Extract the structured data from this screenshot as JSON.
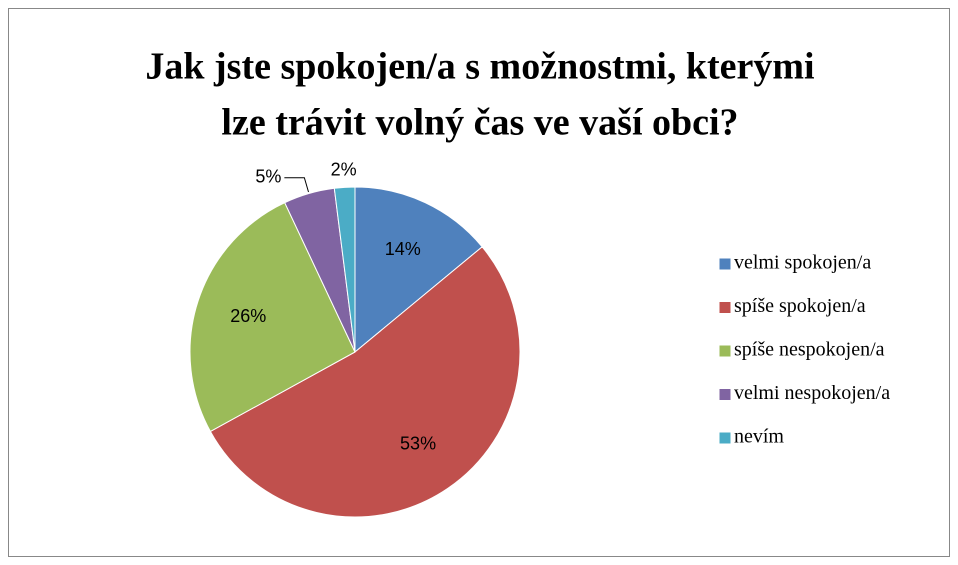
{
  "chart_data": {
    "type": "pie",
    "title": [
      "Jak jste spokojen/a s možnostmi, kterými",
      "lze trávit volný čas ve vaší obci?"
    ],
    "categories": [
      "velmi spokojen/a",
      "spíše spokojen/a",
      "spíše nespokojen/a",
      "velmi nespokojen/a",
      "nevím"
    ],
    "values": [
      14,
      53,
      26,
      5,
      2
    ],
    "value_labels": [
      "14%",
      "53%",
      "26%",
      "5%",
      "2%"
    ],
    "colors": [
      "#4f81bd",
      "#c0504d",
      "#9bbb59",
      "#8064a2",
      "#4bacc6"
    ],
    "legend": "right"
  }
}
